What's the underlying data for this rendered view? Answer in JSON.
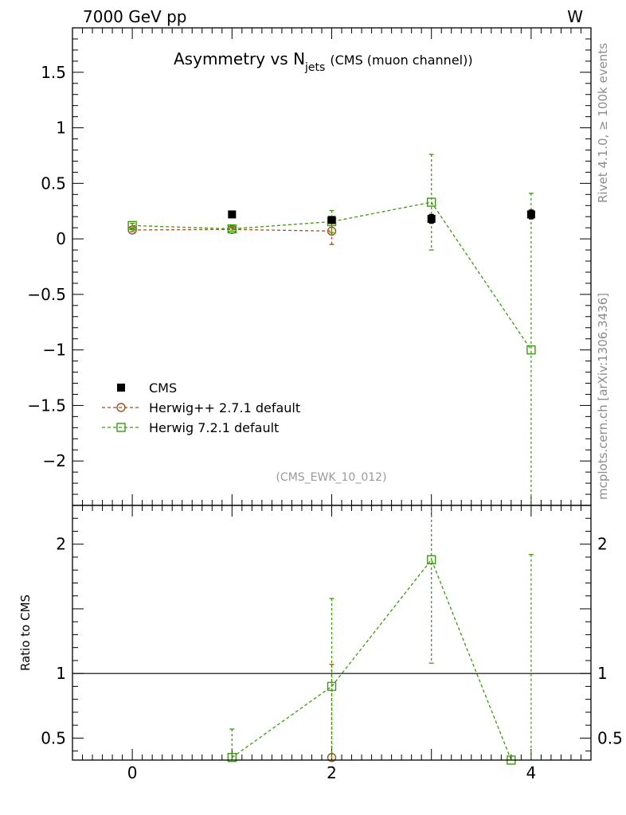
{
  "header": {
    "left": "7000 GeV pp",
    "right": "W",
    "title_main": "Asymmetry vs N",
    "title_sub": "jets",
    "title_note": "(CMS (muon channel))"
  },
  "side_labels": {
    "top": "Rivet 4.1.0, ≥ 100k events",
    "bottom": "mcplots.cern.ch [arXiv:1306.3436]"
  },
  "analysis_tag": "(CMS_EWK_10_012)",
  "colors": {
    "data": "#000000",
    "herwigpp": "#a0501e",
    "herwig7": "#3c9a10",
    "sidetext": "#8c8c8c"
  },
  "chart_data": [
    {
      "type": "scatter",
      "panel": "main",
      "xlim": [
        -0.6,
        4.6
      ],
      "ylim": [
        -2.4,
        1.9
      ],
      "x_ticks": [
        0,
        2,
        4
      ],
      "y_ticks": [
        {
          "v": 1.5,
          "label": "1.5"
        },
        {
          "v": 1,
          "label": "1"
        },
        {
          "v": 0.5,
          "label": "0.5"
        },
        {
          "v": 0,
          "label": "0"
        },
        {
          "v": -0.5,
          "label": "−0.5"
        },
        {
          "v": -1,
          "label": "−1"
        },
        {
          "v": -1.5,
          "label": "−1.5"
        },
        {
          "v": -2,
          "label": "−2"
        }
      ],
      "legend_position": "lower-left",
      "series": [
        {
          "key": "data",
          "name": "CMS",
          "marker": "filled-square",
          "x": [
            1,
            2,
            3,
            4
          ],
          "y": [
            0.22,
            0.17,
            0.18,
            0.22
          ],
          "yerr": [
            0.02,
            0.03,
            0.04,
            0.04
          ]
        },
        {
          "key": "herwigpp",
          "name": "Herwig++ 2.7.1 default",
          "marker": "open-circle",
          "x": [
            0,
            1,
            2
          ],
          "y": [
            0.08,
            0.085,
            0.07
          ],
          "yerr": [
            0.015,
            0.015,
            0.12
          ]
        },
        {
          "key": "herwig7",
          "name": "Herwig 7.2.1 default",
          "marker": "open-square",
          "x": [
            0,
            1,
            2,
            3,
            4
          ],
          "y": [
            0.12,
            0.09,
            0.155,
            0.33,
            -1.0
          ],
          "yerr": [
            0.02,
            0.02,
            0.1,
            0.43,
            1.41
          ]
        }
      ]
    },
    {
      "type": "scatter",
      "panel": "ratio",
      "ylabel": "Ratio to CMS",
      "xlim": [
        -0.6,
        4.6
      ],
      "ylim": [
        0.33,
        2.3
      ],
      "x_ticks": [
        0,
        2,
        4
      ],
      "y_ticks": [
        {
          "v": 0.5,
          "label": "0.5"
        },
        {
          "v": 1,
          "label": "1"
        },
        {
          "v": 2,
          "label": "2"
        }
      ],
      "reference_line": 1,
      "series": [
        {
          "key": "herwigpp",
          "name": "Herwig++ 2.7.1 default",
          "marker": "open-circle",
          "x": [
            2
          ],
          "y": [
            0.35
          ],
          "yerr": [
            0.72
          ]
        },
        {
          "key": "herwig7",
          "name": "Herwig 7.2.1 default",
          "marker": "open-square",
          "x": [
            1,
            2,
            3,
            3.8
          ],
          "y": [
            0.35,
            0.9,
            1.88,
            0.33
          ],
          "yerr": [
            0.22,
            0.68,
            0.8,
            0
          ],
          "extra_errorbars": [
            {
              "x": 4,
              "lo": 0.33,
              "hi": 1.92
            }
          ]
        }
      ]
    }
  ]
}
